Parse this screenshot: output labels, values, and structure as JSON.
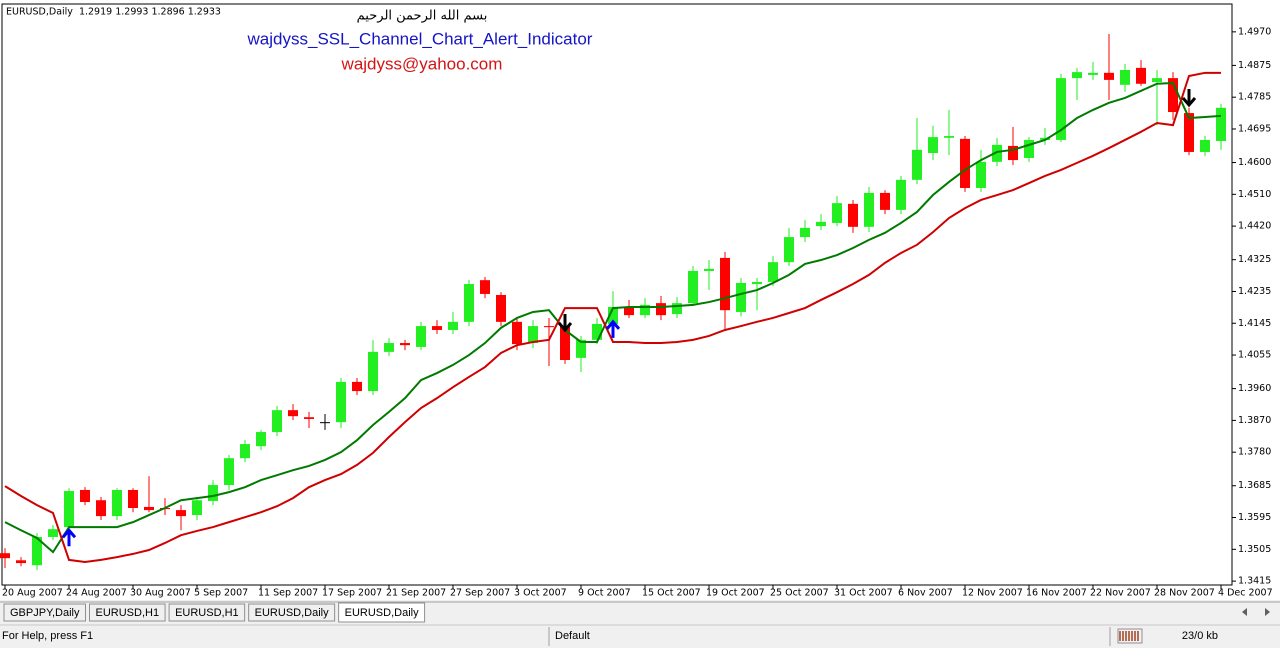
{
  "chart_data": {
    "type": "candlestick",
    "symbol_label": "EURUSD,Daily  1.2919 1.2993 1.2896 1.2933",
    "heading": "بسم الله الرحمن الرحيم",
    "title": "wajdyss_SSL_Channel_Chart_Alert_Indicator",
    "subtitle": "wajdyss@yahoo.com",
    "categories": [
      "20 Aug 2007",
      null,
      null,
      null,
      "24 Aug 2007",
      null,
      null,
      null,
      "30 Aug 2007",
      null,
      null,
      null,
      "5 Sep 2007",
      null,
      null,
      null,
      "11 Sep 2007",
      null,
      null,
      null,
      "17 Sep 2007",
      null,
      null,
      null,
      "21 Sep 2007",
      null,
      null,
      null,
      "27 Sep 2007",
      null,
      null,
      null,
      "3 Oct 2007",
      null,
      null,
      null,
      "9 Oct 2007",
      null,
      null,
      null,
      "15 Oct 2007",
      null,
      null,
      null,
      "19 Oct 2007",
      null,
      null,
      null,
      "25 Oct 2007",
      null,
      null,
      null,
      "31 Oct 2007",
      null,
      null,
      null,
      "6 Nov 2007",
      null,
      null,
      null,
      "12 Nov 2007",
      null,
      null,
      null,
      "16 Nov 2007",
      null,
      null,
      null,
      "22 Nov 2007",
      null,
      null,
      null,
      "28 Nov 2007",
      null,
      null,
      null,
      "4 Dec 2007"
    ],
    "open": [
      1.3494,
      1.3474,
      1.346,
      1.354,
      1.3568,
      1.3673,
      1.3644,
      1.3599,
      1.3673,
      1.3625,
      1.3622,
      1.3616,
      1.3602,
      1.3642,
      1.3687,
      1.3763,
      1.3797,
      1.3837,
      1.3899,
      1.3879,
      1.3865,
      1.3865,
      1.3979,
      1.3953,
      1.4064,
      1.4089,
      1.4078,
      1.4137,
      1.4126,
      1.4149,
      1.4267,
      1.4225,
      1.4149,
      1.4089,
      1.4137,
      1.4137,
      1.4047,
      1.4098,
      1.4143,
      1.4191,
      1.4168,
      1.4202,
      1.4171,
      1.4202,
      1.4293,
      1.433,
      1.4177,
      1.4256,
      1.4262,
      1.4318,
      1.4389,
      1.442,
      1.4429,
      1.4483,
      1.4418,
      1.4514,
      1.4466,
      1.4551,
      1.4627,
      1.467,
      1.4667,
      1.4528,
      1.4602,
      1.4647,
      1.4613,
      1.4664,
      1.4664,
      1.4839,
      1.4848,
      1.4854,
      1.482,
      1.4868,
      1.4828,
      1.4839,
      1.474,
      1.463,
      1.4661
    ],
    "high": [
      1.3508,
      1.3483,
      1.3551,
      1.3574,
      1.3678,
      1.3681,
      1.3653,
      1.3678,
      1.3678,
      1.3712,
      1.365,
      1.363,
      1.3653,
      1.3701,
      1.3772,
      1.3814,
      1.3843,
      1.3911,
      1.3916,
      1.3894,
      1.3888,
      1.399,
      1.399,
      1.4098,
      1.4103,
      1.4098,
      1.4149,
      1.4154,
      1.4177,
      1.4267,
      1.4276,
      1.4233,
      1.416,
      1.4154,
      1.416,
      1.416,
      1.4109,
      1.416,
      1.4236,
      1.4211,
      1.4216,
      1.4222,
      1.4219,
      1.4307,
      1.4324,
      1.4347,
      1.4273,
      1.4273,
      1.4335,
      1.4415,
      1.4437,
      1.4454,
      1.4505,
      1.4494,
      1.4531,
      1.4522,
      1.4562,
      1.4726,
      1.4704,
      1.4749,
      1.4675,
      1.4636,
      1.467,
      1.4701,
      1.4672,
      1.4698,
      1.4851,
      1.4868,
      1.4885,
      1.4964,
      1.4879,
      1.489,
      1.4862,
      1.4856,
      1.4755,
      1.4675,
      1.4766
    ],
    "low": [
      1.3452,
      1.3457,
      1.3446,
      1.3531,
      1.3559,
      1.363,
      1.3588,
      1.3588,
      1.361,
      1.361,
      1.3602,
      1.3559,
      1.3588,
      1.363,
      1.3673,
      1.3752,
      1.3786,
      1.3826,
      1.3871,
      1.3848,
      1.3843,
      1.3848,
      1.3942,
      1.3942,
      1.4052,
      1.4069,
      1.4069,
      1.4115,
      1.4115,
      1.4137,
      1.4216,
      1.4137,
      1.4069,
      1.4075,
      1.4024,
      1.403,
      1.4007,
      1.4086,
      1.4131,
      1.416,
      1.416,
      1.4154,
      1.416,
      1.4194,
      1.4239,
      1.4126,
      1.4165,
      1.4182,
      1.425,
      1.4307,
      1.4375,
      1.4409,
      1.442,
      1.4401,
      1.4403,
      1.4454,
      1.4454,
      1.4539,
      1.4607,
      1.4621,
      1.4517,
      1.4517,
      1.459,
      1.4593,
      1.4602,
      1.465,
      1.4658,
      1.4777,
      1.4834,
      1.4777,
      1.48,
      1.4817,
      1.4706,
      1.4721,
      1.4621,
      1.4619,
      1.4636
    ],
    "close": [
      1.348,
      1.3466,
      1.354,
      1.3562,
      1.367,
      1.3639,
      1.3599,
      1.3673,
      1.3622,
      1.3616,
      1.3619,
      1.3599,
      1.3644,
      1.3687,
      1.3763,
      1.3803,
      1.3837,
      1.3899,
      1.3882,
      1.3874,
      1.3865,
      1.3979,
      1.3953,
      1.4064,
      1.4089,
      1.4083,
      1.4137,
      1.4126,
      1.4149,
      1.4256,
      1.4228,
      1.4149,
      1.4086,
      1.4137,
      1.4134,
      1.4041,
      1.4098,
      1.4143,
      1.4191,
      1.4168,
      1.4197,
      1.4168,
      1.4202,
      1.4293,
      1.4299,
      1.4182,
      1.4259,
      1.4262,
      1.4318,
      1.4389,
      1.4415,
      1.4432,
      1.4485,
      1.4418,
      1.4514,
      1.4466,
      1.4551,
      1.4636,
      1.4672,
      1.4675,
      1.4528,
      1.4602,
      1.465,
      1.4607,
      1.4664,
      1.467,
      1.4839,
      1.4856,
      1.4854,
      1.4834,
      1.4862,
      1.4823,
      1.4839,
      1.4743,
      1.463,
      1.4664,
      1.4755
    ],
    "up_color": "#22ee22",
    "down_color": "#ff0000",
    "lines": [
      {
        "color": "#007a00",
        "values": [
          1.3582,
          1.3559,
          1.3537,
          1.3497,
          1.3568,
          1.3568,
          1.3568,
          1.3568,
          1.3582,
          1.3602,
          1.3622,
          1.3644,
          1.365,
          1.3656,
          1.3667,
          1.3681,
          1.3701,
          1.3715,
          1.3729,
          1.3741,
          1.3758,
          1.378,
          1.3814,
          1.3857,
          1.3894,
          1.3933,
          1.3984,
          1.4004,
          1.4027,
          1.4055,
          1.4089,
          1.4132,
          1.416,
          1.4177,
          1.4182,
          1.4126,
          1.4092,
          1.4092,
          1.4188,
          1.4191,
          1.4191,
          1.4191,
          1.4194,
          1.4197,
          1.4205,
          1.4216,
          1.4228,
          1.4239,
          1.4259,
          1.4282,
          1.4313,
          1.4324,
          1.4338,
          1.4358,
          1.4381,
          1.4401,
          1.4429,
          1.446,
          1.4508,
          1.4545,
          1.4579,
          1.4607,
          1.463,
          1.4636,
          1.465,
          1.4664,
          1.4692,
          1.4726,
          1.4749,
          1.4769,
          1.4783,
          1.4803,
          1.4823,
          1.4825,
          1.4726,
          1.4729,
          1.4732
        ]
      },
      {
        "color": "#d00000",
        "values": [
          1.3684,
          1.3656,
          1.363,
          1.3608,
          1.3475,
          1.3469,
          1.3475,
          1.3483,
          1.3492,
          1.3503,
          1.3523,
          1.3545,
          1.3557,
          1.3568,
          1.3582,
          1.3596,
          1.361,
          1.3627,
          1.365,
          1.3681,
          1.3701,
          1.3718,
          1.3744,
          1.3778,
          1.3823,
          1.3865,
          1.3905,
          1.3933,
          1.3964,
          1.3993,
          1.4021,
          1.4061,
          1.4083,
          1.4092,
          1.4098,
          1.4188,
          1.4188,
          1.4188,
          1.4092,
          1.4092,
          1.4089,
          1.4089,
          1.4092,
          1.4098,
          1.4109,
          1.4126,
          1.4137,
          1.4149,
          1.416,
          1.4174,
          1.4188,
          1.4211,
          1.4233,
          1.4256,
          1.4282,
          1.4316,
          1.4344,
          1.4367,
          1.4403,
          1.4443,
          1.4471,
          1.4494,
          1.4508,
          1.4522,
          1.4542,
          1.4562,
          1.4579,
          1.4599,
          1.4619,
          1.4641,
          1.4664,
          1.4687,
          1.4712,
          1.4706,
          1.4845,
          1.4854,
          1.4854
        ]
      }
    ],
    "arrows": [
      {
        "index": 4,
        "value": 1.3559,
        "direction": "up",
        "color": "#0000ff"
      },
      {
        "index": 35,
        "value": 1.4126,
        "direction": "down",
        "color": "#000000"
      },
      {
        "index": 38,
        "value": 1.4149,
        "direction": "up",
        "color": "#0000ff"
      },
      {
        "index": 74,
        "value": 1.4763,
        "direction": "down",
        "color": "#000000"
      }
    ],
    "ylim": [
      1.3404,
      1.5046
    ],
    "yticks": [
      {
        "value": 1.497,
        "label": "1.4970"
      },
      {
        "value": 1.4875,
        "label": "1.4875"
      },
      {
        "value": 1.4785,
        "label": "1.4785"
      },
      {
        "value": 1.4695,
        "label": "1.4695"
      },
      {
        "value": 1.46,
        "label": "1.4600"
      },
      {
        "value": 1.451,
        "label": "1.4510"
      },
      {
        "value": 1.442,
        "label": "1.4420"
      },
      {
        "value": 1.4325,
        "label": "1.4325"
      },
      {
        "value": 1.4235,
        "label": "1.4235"
      },
      {
        "value": 1.4145,
        "label": "1.4145"
      },
      {
        "value": 1.4055,
        "label": "1.4055"
      },
      {
        "value": 1.396,
        "label": "1.3960"
      },
      {
        "value": 1.387,
        "label": "1.3870"
      },
      {
        "value": 1.378,
        "label": "1.3780"
      },
      {
        "value": 1.3685,
        "label": "1.3685"
      },
      {
        "value": 1.3595,
        "label": "1.3595"
      },
      {
        "value": 1.3505,
        "label": "1.3505"
      },
      {
        "value": 1.3415,
        "label": "1.3415"
      }
    ],
    "grid": false
  },
  "tabs": [
    "GBPJPY,Daily",
    "EURUSD,H1",
    "EURUSD,H1",
    "EURUSD,Daily",
    "EURUSD,Daily"
  ],
  "status_bar": {
    "help": "For Help, press F1",
    "profile": "Default",
    "traffic": "23/0 kb"
  }
}
